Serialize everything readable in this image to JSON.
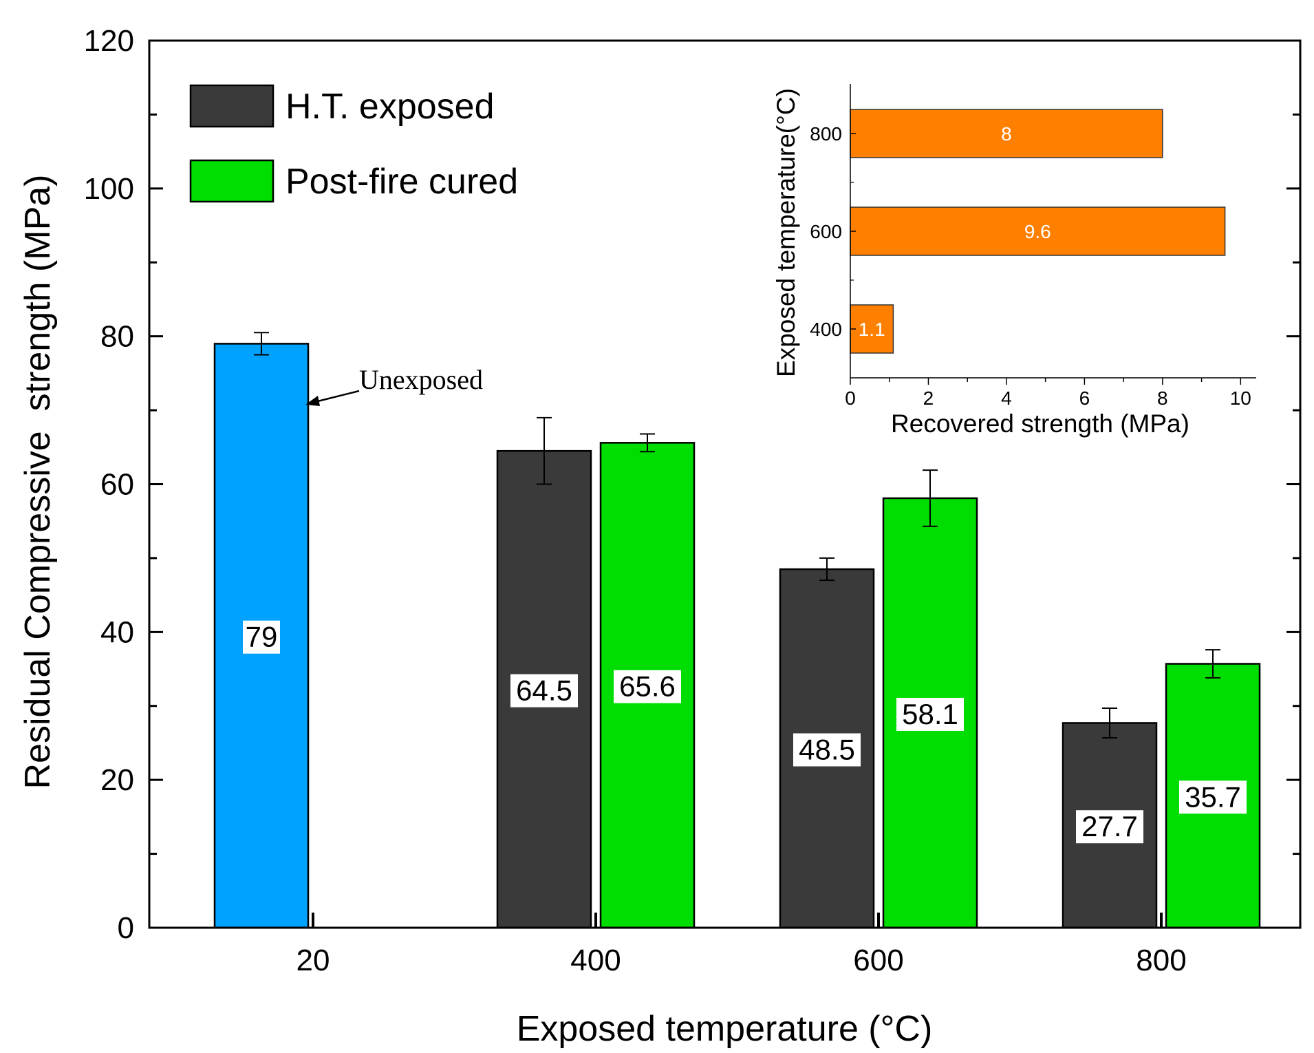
{
  "chart_data": [
    {
      "type": "bar",
      "title": "",
      "xlabel": "Exposed temperature (°C)",
      "ylabel": "Residual Compressive  strength (MPa)",
      "ylim": [
        0,
        120
      ],
      "yticks": [
        0,
        20,
        40,
        60,
        80,
        100,
        120
      ],
      "categories": [
        "20",
        "400",
        "600",
        "800"
      ],
      "legend": {
        "position": "top-left",
        "entries": [
          {
            "name": "H.T. exposed",
            "color": "#3a3a3a"
          },
          {
            "name": "Post-fire cured",
            "color": "#00dd00"
          }
        ]
      },
      "series": [
        {
          "name": "Unexposed",
          "color": "#00a2ff",
          "values": [
            79,
            null,
            null,
            null
          ],
          "errors": [
            1.5,
            null,
            null,
            null
          ],
          "labels": [
            "79",
            null,
            null,
            null
          ]
        },
        {
          "name": "H.T. exposed",
          "color": "#3a3a3a",
          "values": [
            null,
            64.5,
            48.5,
            27.7
          ],
          "errors": [
            null,
            4.5,
            1.5,
            2.0
          ],
          "labels": [
            null,
            "64.5",
            "48.5",
            "27.7"
          ]
        },
        {
          "name": "Post-fire cured",
          "color": "#00dd00",
          "values": [
            null,
            65.6,
            58.1,
            35.7
          ],
          "errors": [
            null,
            1.2,
            3.8,
            1.9
          ],
          "labels": [
            null,
            "65.6",
            "58.1",
            "35.7"
          ]
        }
      ],
      "annotations": [
        {
          "text": "Unexposed",
          "target": "Unexposed bar at 20"
        }
      ]
    },
    {
      "type": "bar",
      "orientation": "horizontal",
      "inset": true,
      "title": "",
      "xlabel": "Recovered strength (MPa)",
      "ylabel": "Exposed temperature(°C)",
      "xlim": [
        0,
        10.4
      ],
      "xticks": [
        0,
        2,
        4,
        6,
        8,
        10
      ],
      "categories": [
        "400",
        "600",
        "800"
      ],
      "values": [
        1.1,
        9.6,
        8
      ],
      "labels": [
        "1.1",
        "9.6",
        "8"
      ],
      "color": "#ff8000"
    }
  ]
}
